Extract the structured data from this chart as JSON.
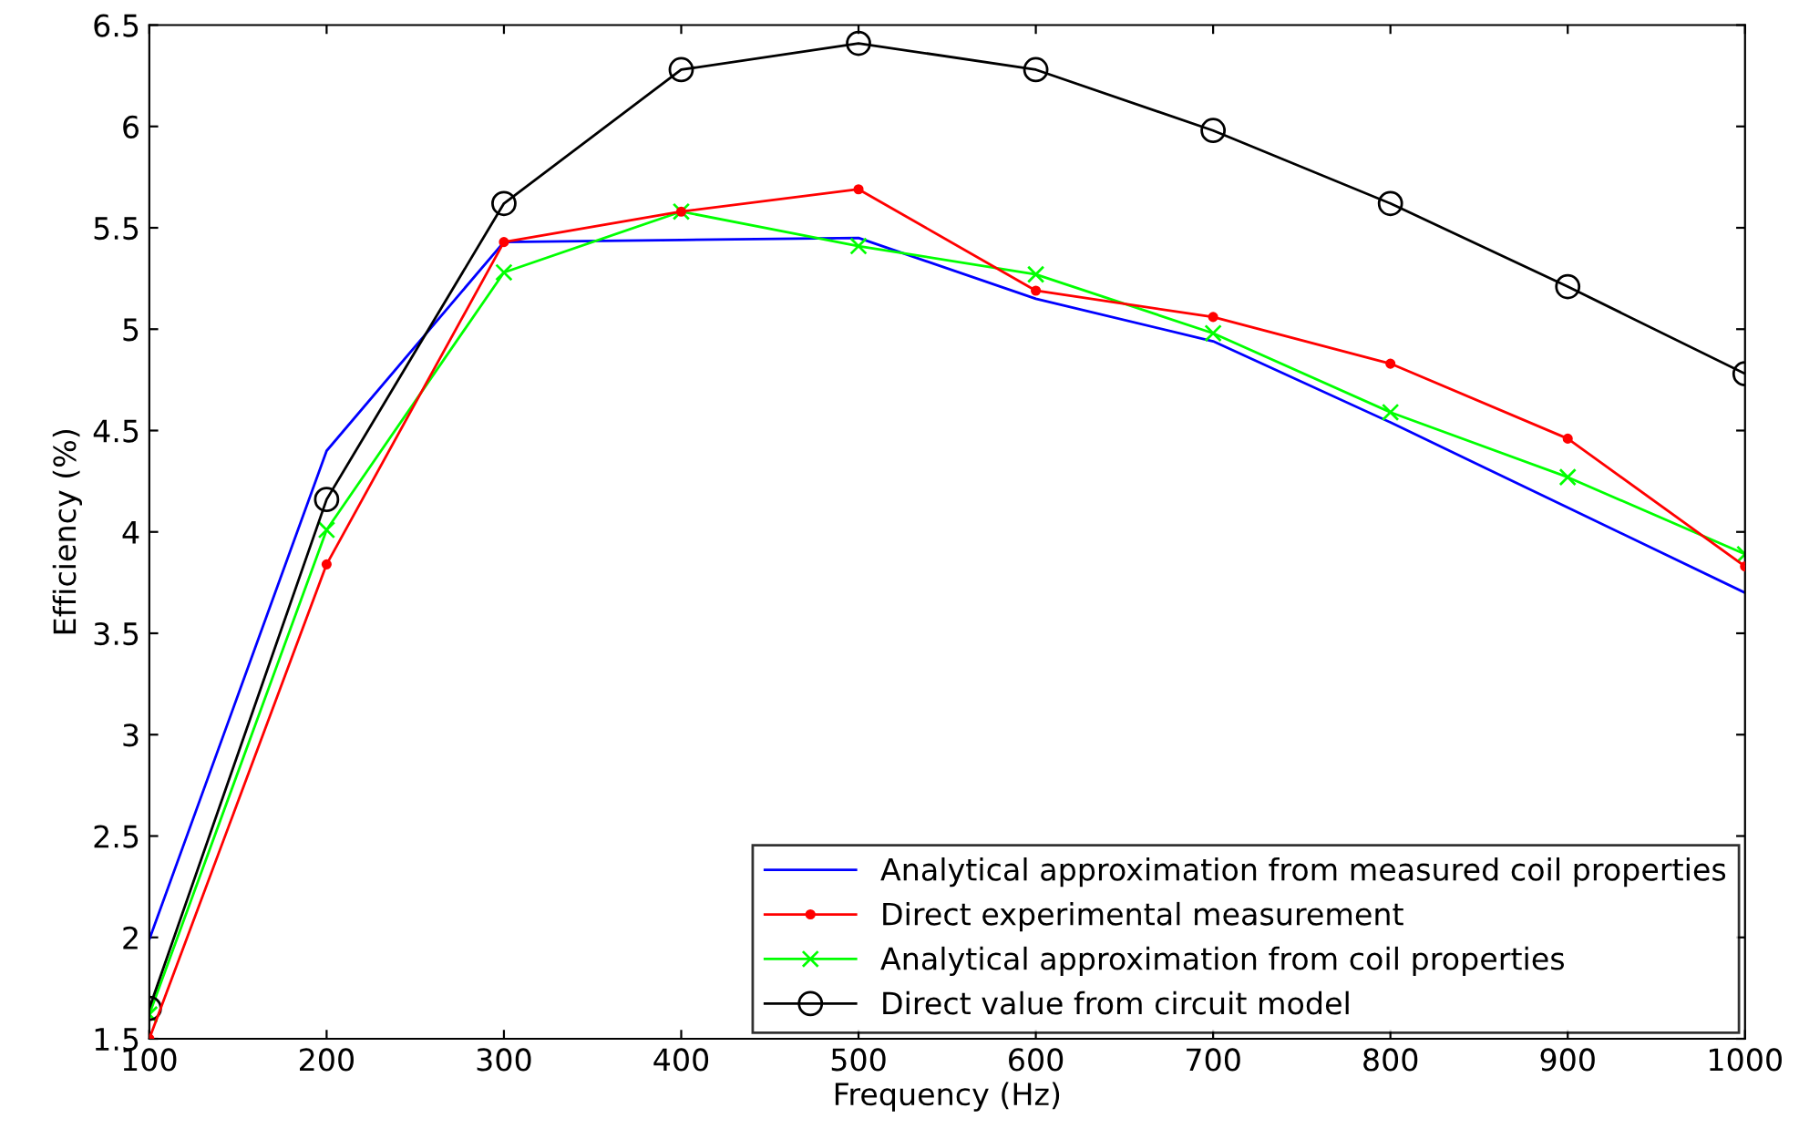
{
  "chart_data": {
    "type": "line",
    "xlabel": "Frequency (Hz)",
    "ylabel": "Efficiency (%)",
    "x": [
      100,
      200,
      300,
      400,
      500,
      600,
      700,
      800,
      900,
      1000
    ],
    "xlim": [
      100,
      1000
    ],
    "xticks": [
      100,
      200,
      300,
      400,
      500,
      600,
      700,
      800,
      900,
      1000
    ],
    "ylim": [
      1.5,
      6.5
    ],
    "yticks": [
      1.5,
      2,
      2.5,
      3,
      3.5,
      4,
      4.5,
      5,
      5.5,
      6,
      6.5
    ],
    "grid": false,
    "legend": "bottom right",
    "series": [
      {
        "name": "Analytical approximation from measured coil properties",
        "color": "#0000ff",
        "marker": "none",
        "values": [
          1.99,
          4.4,
          5.43,
          5.44,
          5.45,
          5.15,
          4.94,
          4.54,
          4.12,
          3.7
        ]
      },
      {
        "name": "Direct experimental measurement",
        "color": "#ff0000",
        "marker": "circle",
        "values": [
          1.5,
          3.84,
          5.43,
          5.58,
          5.69,
          5.19,
          5.06,
          4.83,
          4.46,
          3.83
        ]
      },
      {
        "name": "Analytical approximation from coil properties",
        "color": "#00ff00",
        "marker": "cross",
        "values": [
          1.62,
          4.01,
          5.28,
          5.58,
          5.41,
          5.27,
          4.98,
          4.59,
          4.27,
          3.89
        ]
      },
      {
        "name": "Direct value from circuit model",
        "color": "#000000",
        "marker": "circle",
        "values": [
          1.65,
          4.16,
          5.62,
          6.28,
          6.41,
          6.28,
          5.98,
          5.62,
          5.21,
          4.78
        ]
      }
    ]
  }
}
